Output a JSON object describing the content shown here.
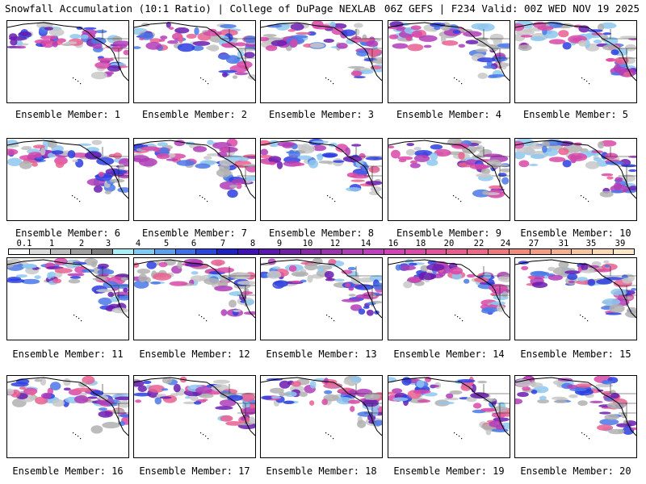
{
  "header": {
    "title_left": "Snowfall Accumulation (10:1 Ratio) | College of DuPage NEXLAB",
    "title_right": "06Z GEFS | F234 Valid: 00Z WED NOV 19 2025"
  },
  "panels": [
    {
      "label": "Ensemble Member: 1"
    },
    {
      "label": "Ensemble Member: 2"
    },
    {
      "label": "Ensemble Member: 3"
    },
    {
      "label": "Ensemble Member: 4"
    },
    {
      "label": "Ensemble Member: 5"
    },
    {
      "label": "Ensemble Member: 6"
    },
    {
      "label": "Ensemble Member: 7"
    },
    {
      "label": "Ensemble Member: 8"
    },
    {
      "label": "Ensemble Member: 9"
    },
    {
      "label": "Ensemble Member: 10"
    },
    {
      "label": "Ensemble Member: 11"
    },
    {
      "label": "Ensemble Member: 12"
    },
    {
      "label": "Ensemble Member: 13"
    },
    {
      "label": "Ensemble Member: 14"
    },
    {
      "label": "Ensemble Member: 15"
    },
    {
      "label": "Ensemble Member: 16"
    },
    {
      "label": "Ensemble Member: 17"
    },
    {
      "label": "Ensemble Member: 18"
    },
    {
      "label": "Ensemble Member: 19"
    },
    {
      "label": "Ensemble Member: 20"
    }
  ],
  "colorbar": {
    "colors": [
      "#ffffff",
      "#dcdcdc",
      "#bebebe",
      "#a0a0a0",
      "#7e7e7e",
      "#a8f0f8",
      "#7ecbf5",
      "#5aa0ee",
      "#3f6fe8",
      "#2c45e0",
      "#2020c8",
      "#4010b8",
      "#5a18b0",
      "#7020a8",
      "#8628a8",
      "#9c32ae",
      "#b03cb8",
      "#c23ec0",
      "#d243b8",
      "#dc4aa8",
      "#e3529a",
      "#e85c8e",
      "#ec6884",
      "#f0787c",
      "#f38a7c",
      "#f59c84",
      "#f8b090",
      "#fac4a0",
      "#fcd8b4",
      "#fde8cc"
    ],
    "labels": [
      "0.1",
      "1",
      "2",
      "3",
      "4",
      "5",
      "6",
      "7",
      "8",
      "9",
      "10",
      "12",
      "14",
      "16",
      "18",
      "20",
      "22",
      "24",
      "27",
      "31",
      "35",
      "39"
    ]
  }
}
